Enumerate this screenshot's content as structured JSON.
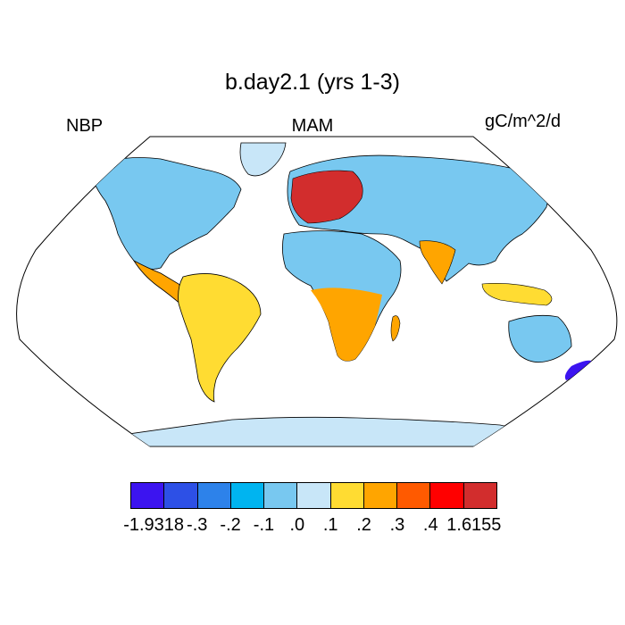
{
  "map": {
    "title": "b.day2.1 (yrs 1-3)",
    "left_label": "NBP",
    "center_label": "MAM",
    "right_label": "gC/m^2/d",
    "projection": "robinson",
    "ocean_color": "#ffffff",
    "coast_color": "#000000"
  },
  "colorbar": {
    "colors": [
      "#3c14f0",
      "#2d50e6",
      "#2d82ea",
      "#00b4f0",
      "#78c8f0",
      "#c8e6f8",
      "#ffdc32",
      "#ffa500",
      "#ff5a00",
      "#ff0000",
      "#d22d2d"
    ],
    "tick_labels": [
      "-1.9318",
      "-.3",
      "-.2",
      "-.1",
      ".0",
      ".1",
      ".2",
      ".3",
      ".4",
      "1.6155"
    ]
  }
}
